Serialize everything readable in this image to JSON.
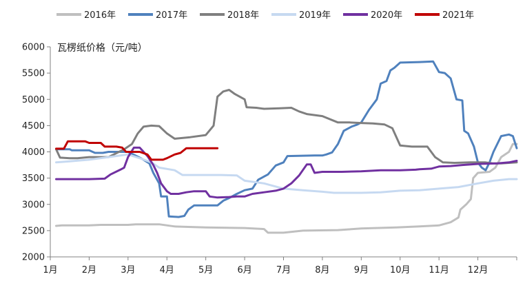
{
  "chart_data": {
    "type": "line",
    "ylabel": "瓦楞纸价格（元/吨）",
    "ylim": [
      2000,
      6000
    ],
    "yticks": [
      2000,
      2500,
      3000,
      3500,
      4000,
      4500,
      5000,
      5500,
      6000
    ],
    "xlim": [
      1,
      13
    ],
    "xtick_values": [
      1,
      2,
      3,
      4,
      5,
      6,
      7,
      8,
      9,
      10,
      11,
      12
    ],
    "xtick_labels": [
      "1月",
      "2月",
      "3月",
      "4月",
      "5月",
      "6月",
      "7月",
      "8月",
      "9月",
      "10月",
      "11月",
      "12月"
    ],
    "grid": false,
    "legend_position": "top",
    "series": [
      {
        "name": "2016年",
        "color": "#bfbfbf",
        "points": [
          [
            1.15,
            2590
          ],
          [
            1.3,
            2600
          ],
          [
            2.0,
            2600
          ],
          [
            2.3,
            2610
          ],
          [
            3.0,
            2610
          ],
          [
            3.2,
            2620
          ],
          [
            3.8,
            2620
          ],
          [
            4.2,
            2580
          ],
          [
            5.0,
            2560
          ],
          [
            6.0,
            2550
          ],
          [
            6.5,
            2530
          ],
          [
            6.6,
            2460
          ],
          [
            7.0,
            2460
          ],
          [
            7.5,
            2500
          ],
          [
            8.4,
            2510
          ],
          [
            9.0,
            2540
          ],
          [
            9.9,
            2560
          ],
          [
            10.5,
            2580
          ],
          [
            11.0,
            2600
          ],
          [
            11.3,
            2660
          ],
          [
            11.5,
            2750
          ],
          [
            11.55,
            2900
          ],
          [
            11.7,
            3000
          ],
          [
            11.82,
            3100
          ],
          [
            11.88,
            3500
          ],
          [
            12.0,
            3600
          ],
          [
            12.3,
            3620
          ],
          [
            12.45,
            3700
          ],
          [
            12.6,
            3900
          ],
          [
            12.8,
            4000
          ],
          [
            12.9,
            4150
          ],
          [
            13.0,
            4150
          ]
        ]
      },
      {
        "name": "2017年",
        "color": "#4f81bd",
        "points": [
          [
            1.15,
            4050
          ],
          [
            1.5,
            4050
          ],
          [
            1.55,
            4030
          ],
          [
            2.0,
            4030
          ],
          [
            2.15,
            3980
          ],
          [
            2.35,
            3980
          ],
          [
            2.5,
            4000
          ],
          [
            3.0,
            4000
          ],
          [
            3.35,
            3870
          ],
          [
            3.55,
            3780
          ],
          [
            3.65,
            3600
          ],
          [
            3.8,
            3400
          ],
          [
            3.85,
            3150
          ],
          [
            4.0,
            3150
          ],
          [
            4.05,
            2770
          ],
          [
            4.3,
            2760
          ],
          [
            4.45,
            2780
          ],
          [
            4.55,
            2900
          ],
          [
            4.7,
            2980
          ],
          [
            5.3,
            2980
          ],
          [
            5.45,
            3070
          ],
          [
            5.6,
            3120
          ],
          [
            5.8,
            3200
          ],
          [
            6.0,
            3270
          ],
          [
            6.2,
            3300
          ],
          [
            6.35,
            3470
          ],
          [
            6.6,
            3570
          ],
          [
            6.8,
            3740
          ],
          [
            7.0,
            3800
          ],
          [
            7.1,
            3920
          ],
          [
            7.8,
            3930
          ],
          [
            8.0,
            3930
          ],
          [
            8.1,
            3950
          ],
          [
            8.25,
            3990
          ],
          [
            8.4,
            4150
          ],
          [
            8.55,
            4400
          ],
          [
            8.75,
            4480
          ],
          [
            8.9,
            4520
          ],
          [
            9.0,
            4560
          ],
          [
            9.2,
            4800
          ],
          [
            9.4,
            5000
          ],
          [
            9.5,
            5300
          ],
          [
            9.65,
            5350
          ],
          [
            9.75,
            5550
          ],
          [
            9.85,
            5600
          ],
          [
            10.0,
            5700
          ],
          [
            10.5,
            5710
          ],
          [
            10.85,
            5720
          ],
          [
            11.0,
            5520
          ],
          [
            11.15,
            5500
          ],
          [
            11.3,
            5400
          ],
          [
            11.45,
            5000
          ],
          [
            11.6,
            4980
          ],
          [
            11.65,
            4400
          ],
          [
            11.75,
            4350
          ],
          [
            11.9,
            4100
          ],
          [
            12.0,
            3800
          ],
          [
            12.1,
            3700
          ],
          [
            12.2,
            3650
          ],
          [
            12.3,
            3800
          ],
          [
            12.4,
            4000
          ],
          [
            12.6,
            4300
          ],
          [
            12.8,
            4330
          ],
          [
            12.9,
            4300
          ],
          [
            13.0,
            4070
          ]
        ]
      },
      {
        "name": "2018年",
        "color": "#7f7f7f",
        "points": [
          [
            1.15,
            4050
          ],
          [
            1.25,
            3890
          ],
          [
            1.5,
            3880
          ],
          [
            1.7,
            3880
          ],
          [
            2.0,
            3900
          ],
          [
            2.5,
            3900
          ],
          [
            2.9,
            4050
          ],
          [
            3.1,
            4150
          ],
          [
            3.25,
            4350
          ],
          [
            3.4,
            4480
          ],
          [
            3.6,
            4500
          ],
          [
            3.8,
            4490
          ],
          [
            4.0,
            4350
          ],
          [
            4.1,
            4300
          ],
          [
            4.2,
            4250
          ],
          [
            4.6,
            4280
          ],
          [
            5.0,
            4320
          ],
          [
            5.2,
            4500
          ],
          [
            5.3,
            5050
          ],
          [
            5.45,
            5150
          ],
          [
            5.6,
            5180
          ],
          [
            5.75,
            5100
          ],
          [
            6.0,
            5000
          ],
          [
            6.05,
            4850
          ],
          [
            6.3,
            4840
          ],
          [
            6.5,
            4820
          ],
          [
            6.9,
            4830
          ],
          [
            7.2,
            4840
          ],
          [
            7.4,
            4770
          ],
          [
            7.6,
            4720
          ],
          [
            7.8,
            4700
          ],
          [
            8.0,
            4680
          ],
          [
            8.4,
            4560
          ],
          [
            8.7,
            4560
          ],
          [
            9.0,
            4550
          ],
          [
            9.3,
            4540
          ],
          [
            9.6,
            4520
          ],
          [
            9.8,
            4450
          ],
          [
            10.0,
            4120
          ],
          [
            10.3,
            4100
          ],
          [
            10.7,
            4100
          ],
          [
            10.9,
            3900
          ],
          [
            11.1,
            3800
          ],
          [
            11.4,
            3790
          ],
          [
            11.8,
            3800
          ],
          [
            12.2,
            3800
          ],
          [
            12.4,
            3780
          ],
          [
            12.6,
            3780
          ],
          [
            13.0,
            3800
          ]
        ]
      },
      {
        "name": "2019年",
        "color": "#c6d9f1",
        "points": [
          [
            1.15,
            3800
          ],
          [
            1.5,
            3820
          ],
          [
            2.0,
            3850
          ],
          [
            2.5,
            3900
          ],
          [
            3.0,
            3950
          ],
          [
            3.3,
            3880
          ],
          [
            3.6,
            3800
          ],
          [
            3.8,
            3700
          ],
          [
            4.2,
            3650
          ],
          [
            4.4,
            3560
          ],
          [
            4.7,
            3560
          ],
          [
            5.4,
            3560
          ],
          [
            5.8,
            3550
          ],
          [
            6.0,
            3450
          ],
          [
            6.5,
            3400
          ],
          [
            7.0,
            3300
          ],
          [
            7.5,
            3270
          ],
          [
            8.0,
            3240
          ],
          [
            8.3,
            3220
          ],
          [
            8.6,
            3220
          ],
          [
            9.0,
            3220
          ],
          [
            9.5,
            3230
          ],
          [
            10.0,
            3260
          ],
          [
            10.5,
            3270
          ],
          [
            11.0,
            3300
          ],
          [
            11.5,
            3330
          ],
          [
            12.0,
            3400
          ],
          [
            12.4,
            3450
          ],
          [
            12.8,
            3480
          ],
          [
            13.0,
            3480
          ]
        ]
      },
      {
        "name": "2020年",
        "color": "#7030a0",
        "points": [
          [
            1.15,
            3480
          ],
          [
            1.5,
            3480
          ],
          [
            2.0,
            3480
          ],
          [
            2.4,
            3490
          ],
          [
            2.55,
            3570
          ],
          [
            2.8,
            3660
          ],
          [
            2.9,
            3700
          ],
          [
            3.0,
            3900
          ],
          [
            3.15,
            4080
          ],
          [
            3.3,
            4080
          ],
          [
            3.5,
            3920
          ],
          [
            3.65,
            3750
          ],
          [
            3.75,
            3600
          ],
          [
            3.85,
            3400
          ],
          [
            4.0,
            3250
          ],
          [
            4.1,
            3200
          ],
          [
            4.3,
            3200
          ],
          [
            4.5,
            3230
          ],
          [
            4.7,
            3250
          ],
          [
            5.0,
            3250
          ],
          [
            5.1,
            3150
          ],
          [
            5.3,
            3130
          ],
          [
            5.6,
            3140
          ],
          [
            5.8,
            3150
          ],
          [
            6.0,
            3150
          ],
          [
            6.2,
            3200
          ],
          [
            6.5,
            3230
          ],
          [
            6.8,
            3260
          ],
          [
            7.0,
            3300
          ],
          [
            7.2,
            3400
          ],
          [
            7.4,
            3550
          ],
          [
            7.6,
            3760
          ],
          [
            7.7,
            3760
          ],
          [
            7.8,
            3600
          ],
          [
            8.0,
            3620
          ],
          [
            8.5,
            3620
          ],
          [
            9.0,
            3630
          ],
          [
            9.5,
            3650
          ],
          [
            10.0,
            3650
          ],
          [
            10.4,
            3660
          ],
          [
            10.5,
            3670
          ],
          [
            10.8,
            3680
          ],
          [
            11.0,
            3720
          ],
          [
            11.3,
            3730
          ],
          [
            11.6,
            3750
          ],
          [
            12.0,
            3770
          ],
          [
            12.5,
            3780
          ],
          [
            12.8,
            3800
          ],
          [
            13.0,
            3830
          ]
        ]
      },
      {
        "name": "2021年",
        "color": "#c00000",
        "points": [
          [
            1.15,
            4060
          ],
          [
            1.35,
            4060
          ],
          [
            1.45,
            4200
          ],
          [
            1.6,
            4200
          ],
          [
            1.9,
            4200
          ],
          [
            2.0,
            4170
          ],
          [
            2.3,
            4170
          ],
          [
            2.4,
            4100
          ],
          [
            2.7,
            4100
          ],
          [
            2.85,
            4080
          ],
          [
            2.95,
            4000
          ],
          [
            3.3,
            4000
          ],
          [
            3.5,
            3950
          ],
          [
            3.6,
            3850
          ],
          [
            3.9,
            3850
          ],
          [
            4.0,
            3880
          ],
          [
            4.2,
            3950
          ],
          [
            4.35,
            3980
          ],
          [
            4.5,
            4070
          ],
          [
            4.9,
            4070
          ],
          [
            5.3,
            4070
          ]
        ]
      }
    ]
  }
}
